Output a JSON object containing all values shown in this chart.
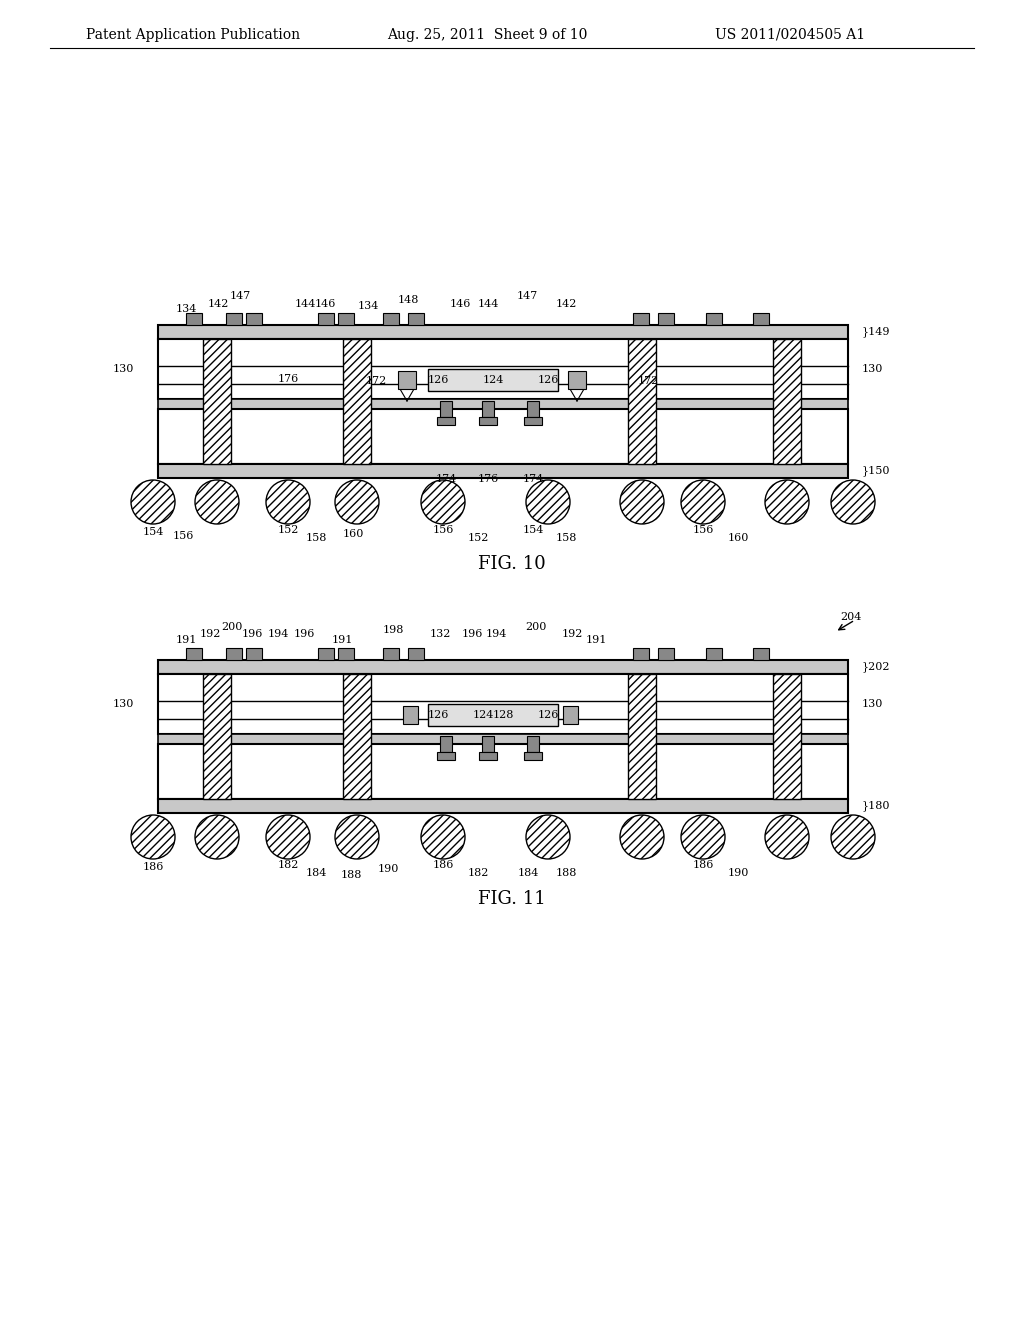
{
  "bg_color": "#ffffff",
  "header_left": "Patent Application Publication",
  "header_mid": "Aug. 25, 2011  Sheet 9 of 10",
  "header_right": "US 2011/0204505 A1",
  "fig10_caption": "FIG. 10",
  "fig11_caption": "FIG. 11"
}
